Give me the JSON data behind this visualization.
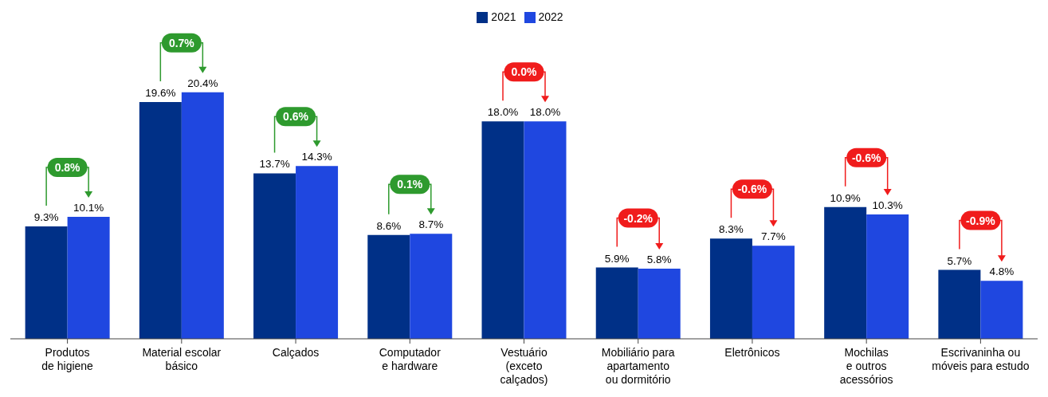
{
  "chart_data": {
    "type": "bar",
    "categories": [
      "Produtos\nde higiene",
      "Material escolar\nbásico",
      "Calçados",
      "Computador\ne hardware",
      "Vestuário\n(exceto\ncalçados)",
      "Mobiliário para\napartamento\nou dormitório",
      "Eletrônicos",
      "Mochilas\ne outros\nacessórios",
      "Escrivaninha ou\nmóveis para estudo"
    ],
    "series": [
      {
        "name": "2021",
        "color": "#003087",
        "values": [
          9.3,
          19.6,
          13.7,
          8.6,
          18.0,
          5.9,
          8.3,
          10.9,
          5.7
        ],
        "value_labels": [
          "9.3%",
          "19.6%",
          "13.7%",
          "8.6%",
          "18.0%",
          "5.9%",
          "8.3%",
          "10.9%",
          "5.7%"
        ]
      },
      {
        "name": "2022",
        "color": "#1f47e0",
        "values": [
          10.1,
          20.4,
          14.3,
          8.7,
          18.0,
          5.8,
          7.7,
          10.3,
          4.8
        ],
        "value_labels": [
          "10.1%",
          "20.4%",
          "14.3%",
          "8.7%",
          "18.0%",
          "5.8%",
          "7.7%",
          "10.3%",
          "4.8%"
        ]
      }
    ],
    "annotations": [
      "0.8%",
      "0.7%",
      "0.6%",
      "0.1%",
      "0.0%",
      "-0.2%",
      "-0.6%",
      "-0.6%",
      "-0.9%"
    ],
    "legend": "top"
  }
}
